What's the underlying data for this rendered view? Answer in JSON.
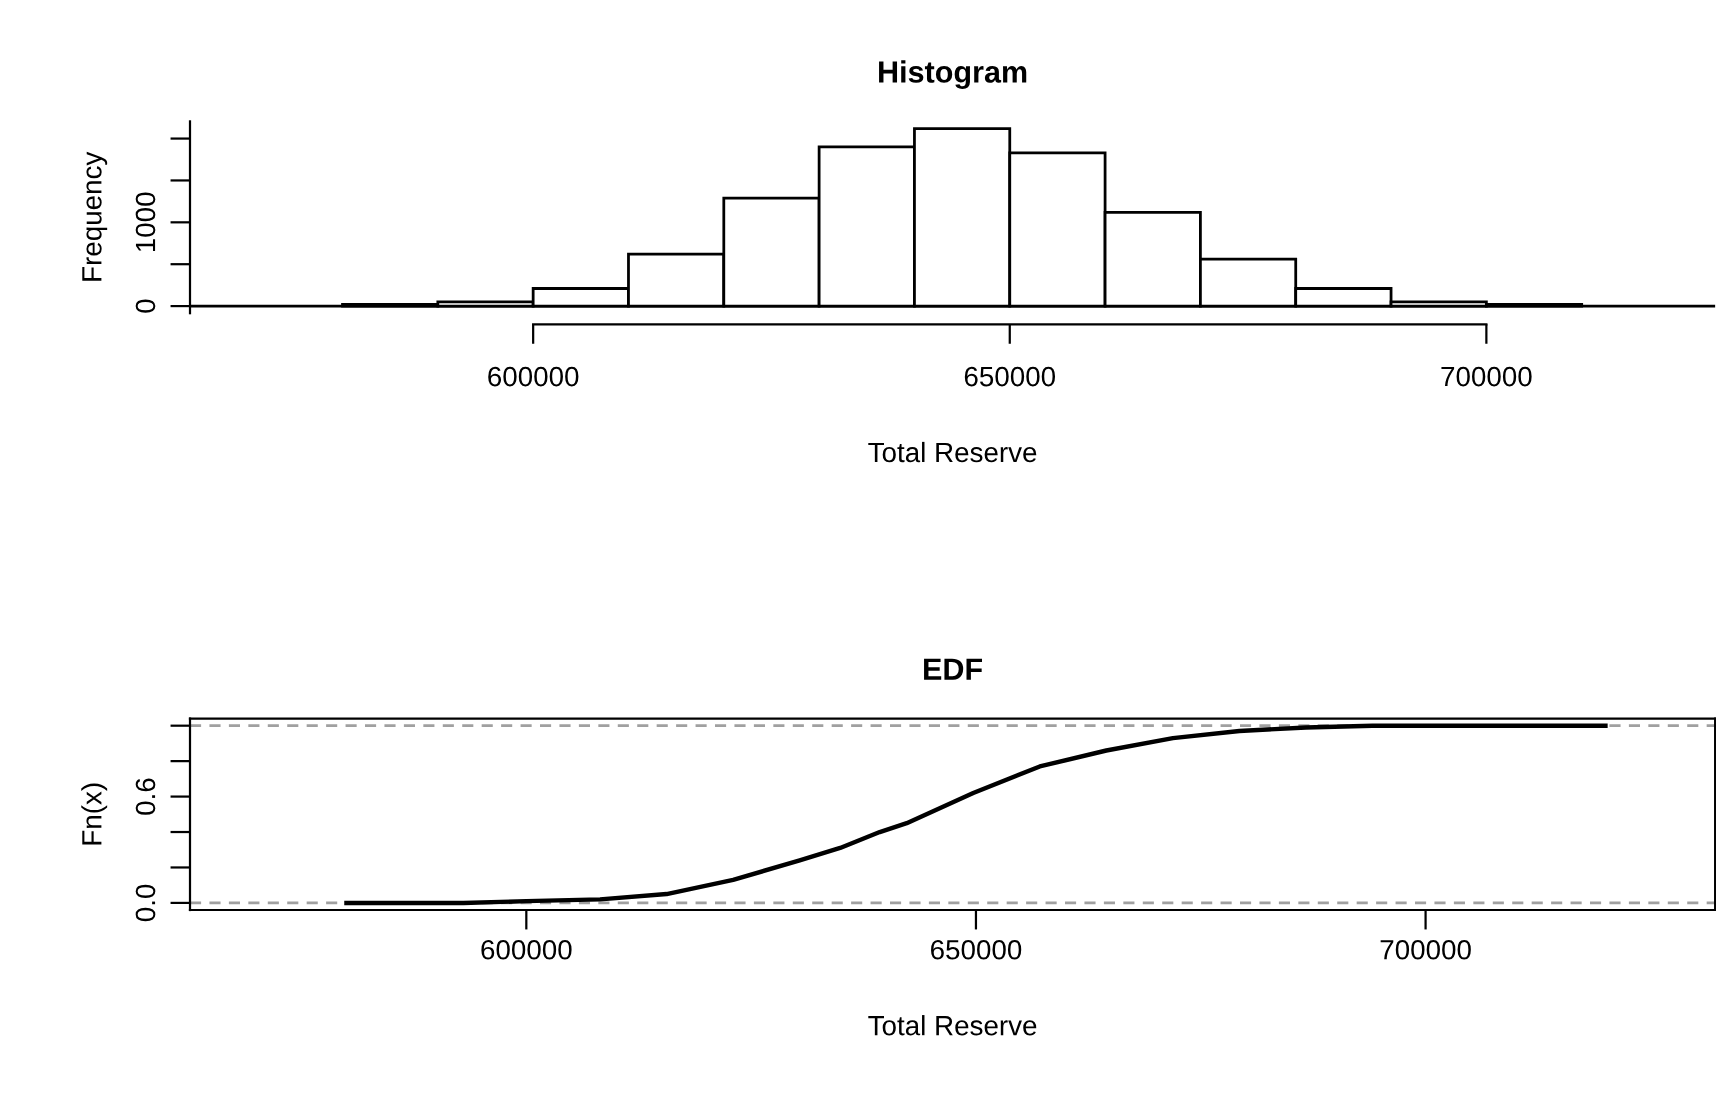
{
  "chart_data": [
    {
      "type": "histogram",
      "title": "Histogram",
      "xlabel": "Total Reserve",
      "ylabel": "Frequency",
      "bins": [
        580000,
        590000,
        600000,
        610000,
        620000,
        630000,
        640000,
        650000,
        660000,
        670000,
        680000,
        690000,
        700000,
        710000
      ],
      "values": [
        20,
        50,
        210,
        620,
        1290,
        1900,
        2120,
        1830,
        1120,
        560,
        210,
        50,
        20
      ],
      "color": "#ffffff",
      "xlim": [
        564000,
        724000
      ],
      "ylim": [
        -85,
        2205
      ],
      "xticks": [
        600000,
        650000,
        700000
      ],
      "yticks": [
        0,
        {
          "value": 500,
          "label": null
        },
        1000,
        {
          "value": 1500,
          "label": null
        },
        {
          "value": 2000,
          "label": null
        }
      ],
      "ref_lines": [
        {
          "axis": "y",
          "value": 0,
          "color": "#000000",
          "line_style": "solid"
        }
      ],
      "grid": false
    },
    {
      "type": "step",
      "title": "EDF",
      "xlabel": "Total Reserve",
      "ylabel": "Fn(x)",
      "x": [
        580000,
        590000,
        593000,
        600000,
        608200,
        615600,
        623000,
        630400,
        634900,
        639300,
        642300,
        649700,
        657100,
        664500,
        671900,
        679300,
        686700,
        694100,
        705000,
        720000
      ],
      "series": [
        {
          "color": "#000000",
          "values": [
            0,
            0,
            0,
            0.01,
            0.02,
            0.05,
            0.13,
            0.24,
            0.31,
            0.4,
            0.45,
            0.62,
            0.77,
            0.86,
            0.93,
            0.97,
            0.99,
            1,
            1,
            1
          ]
        }
      ],
      "xlim": [
        562600,
        732200
      ],
      "ylim": [
        -0.04,
        1.04
      ],
      "xticks": [
        600000,
        650000,
        700000
      ],
      "yticks": [
        {
          "value": 0,
          "label": "0.0"
        },
        {
          "value": 0.2,
          "label": null
        },
        {
          "value": 0.4,
          "label": null
        },
        {
          "value": 0.6,
          "label": "0.6"
        },
        {
          "value": 0.8,
          "label": null
        },
        {
          "value": 1,
          "label": null
        }
      ],
      "ref_lines": [
        {
          "axis": "y",
          "value": 0,
          "color": "#a0a0a0",
          "line_style": "dashed"
        },
        {
          "axis": "y",
          "value": 1,
          "color": "#a0a0a0",
          "line_style": "dashed"
        }
      ],
      "grid": false
    }
  ]
}
